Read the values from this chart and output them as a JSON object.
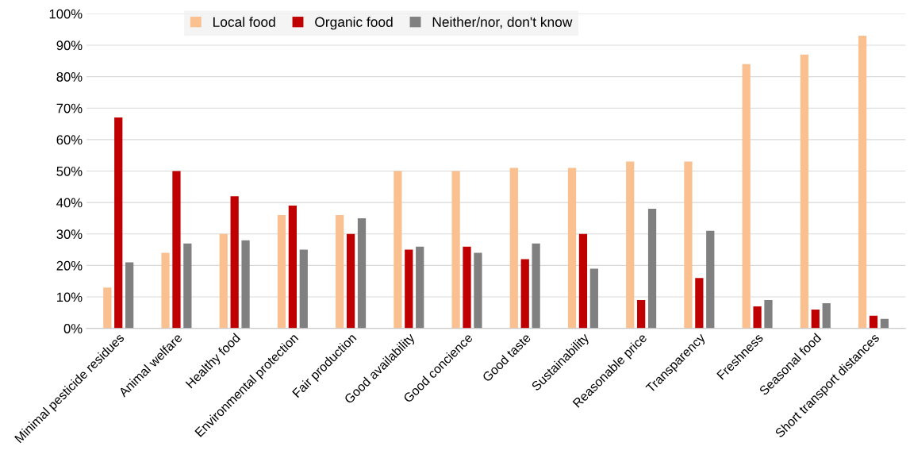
{
  "chart_data": {
    "type": "bar",
    "categories": [
      "Minimal pesticide residues",
      "Animal welfare",
      "Healthy food",
      "Environmental protection",
      "Fair production",
      "Good availability",
      "Good concience",
      "Good taste",
      "Sustainability",
      "Reasonable price",
      "Transparency",
      "Freshness",
      "Seasonal food",
      "Short transport distances"
    ],
    "series": [
      {
        "name": "Local food",
        "color": "#fac090",
        "values": [
          13,
          24,
          30,
          36,
          36,
          50,
          50,
          51,
          51,
          53,
          53,
          84,
          87,
          93
        ]
      },
      {
        "name": "Organic food",
        "color": "#c00000",
        "values": [
          67,
          50,
          42,
          39,
          30,
          25,
          26,
          22,
          30,
          9,
          16,
          7,
          6,
          4
        ]
      },
      {
        "name": "Neither/nor, don't know",
        "color": "#808080",
        "values": [
          21,
          27,
          28,
          25,
          35,
          26,
          24,
          27,
          19,
          38,
          31,
          9,
          8,
          3
        ]
      }
    ],
    "ylim": [
      0,
      100
    ],
    "yticks": [
      {
        "value": 0,
        "label": "0%"
      },
      {
        "value": 10,
        "label": "10%"
      },
      {
        "value": 20,
        "label": "20%"
      },
      {
        "value": 30,
        "label": "30%"
      },
      {
        "value": 40,
        "label": "40%"
      },
      {
        "value": 50,
        "label": "50%"
      },
      {
        "value": 60,
        "label": "60%"
      },
      {
        "value": 70,
        "label": "70%"
      },
      {
        "value": 80,
        "label": "80%"
      },
      {
        "value": 90,
        "label": "90%"
      },
      {
        "value": 100,
        "label": "100%"
      }
    ],
    "grid": "y",
    "legend": "top"
  }
}
